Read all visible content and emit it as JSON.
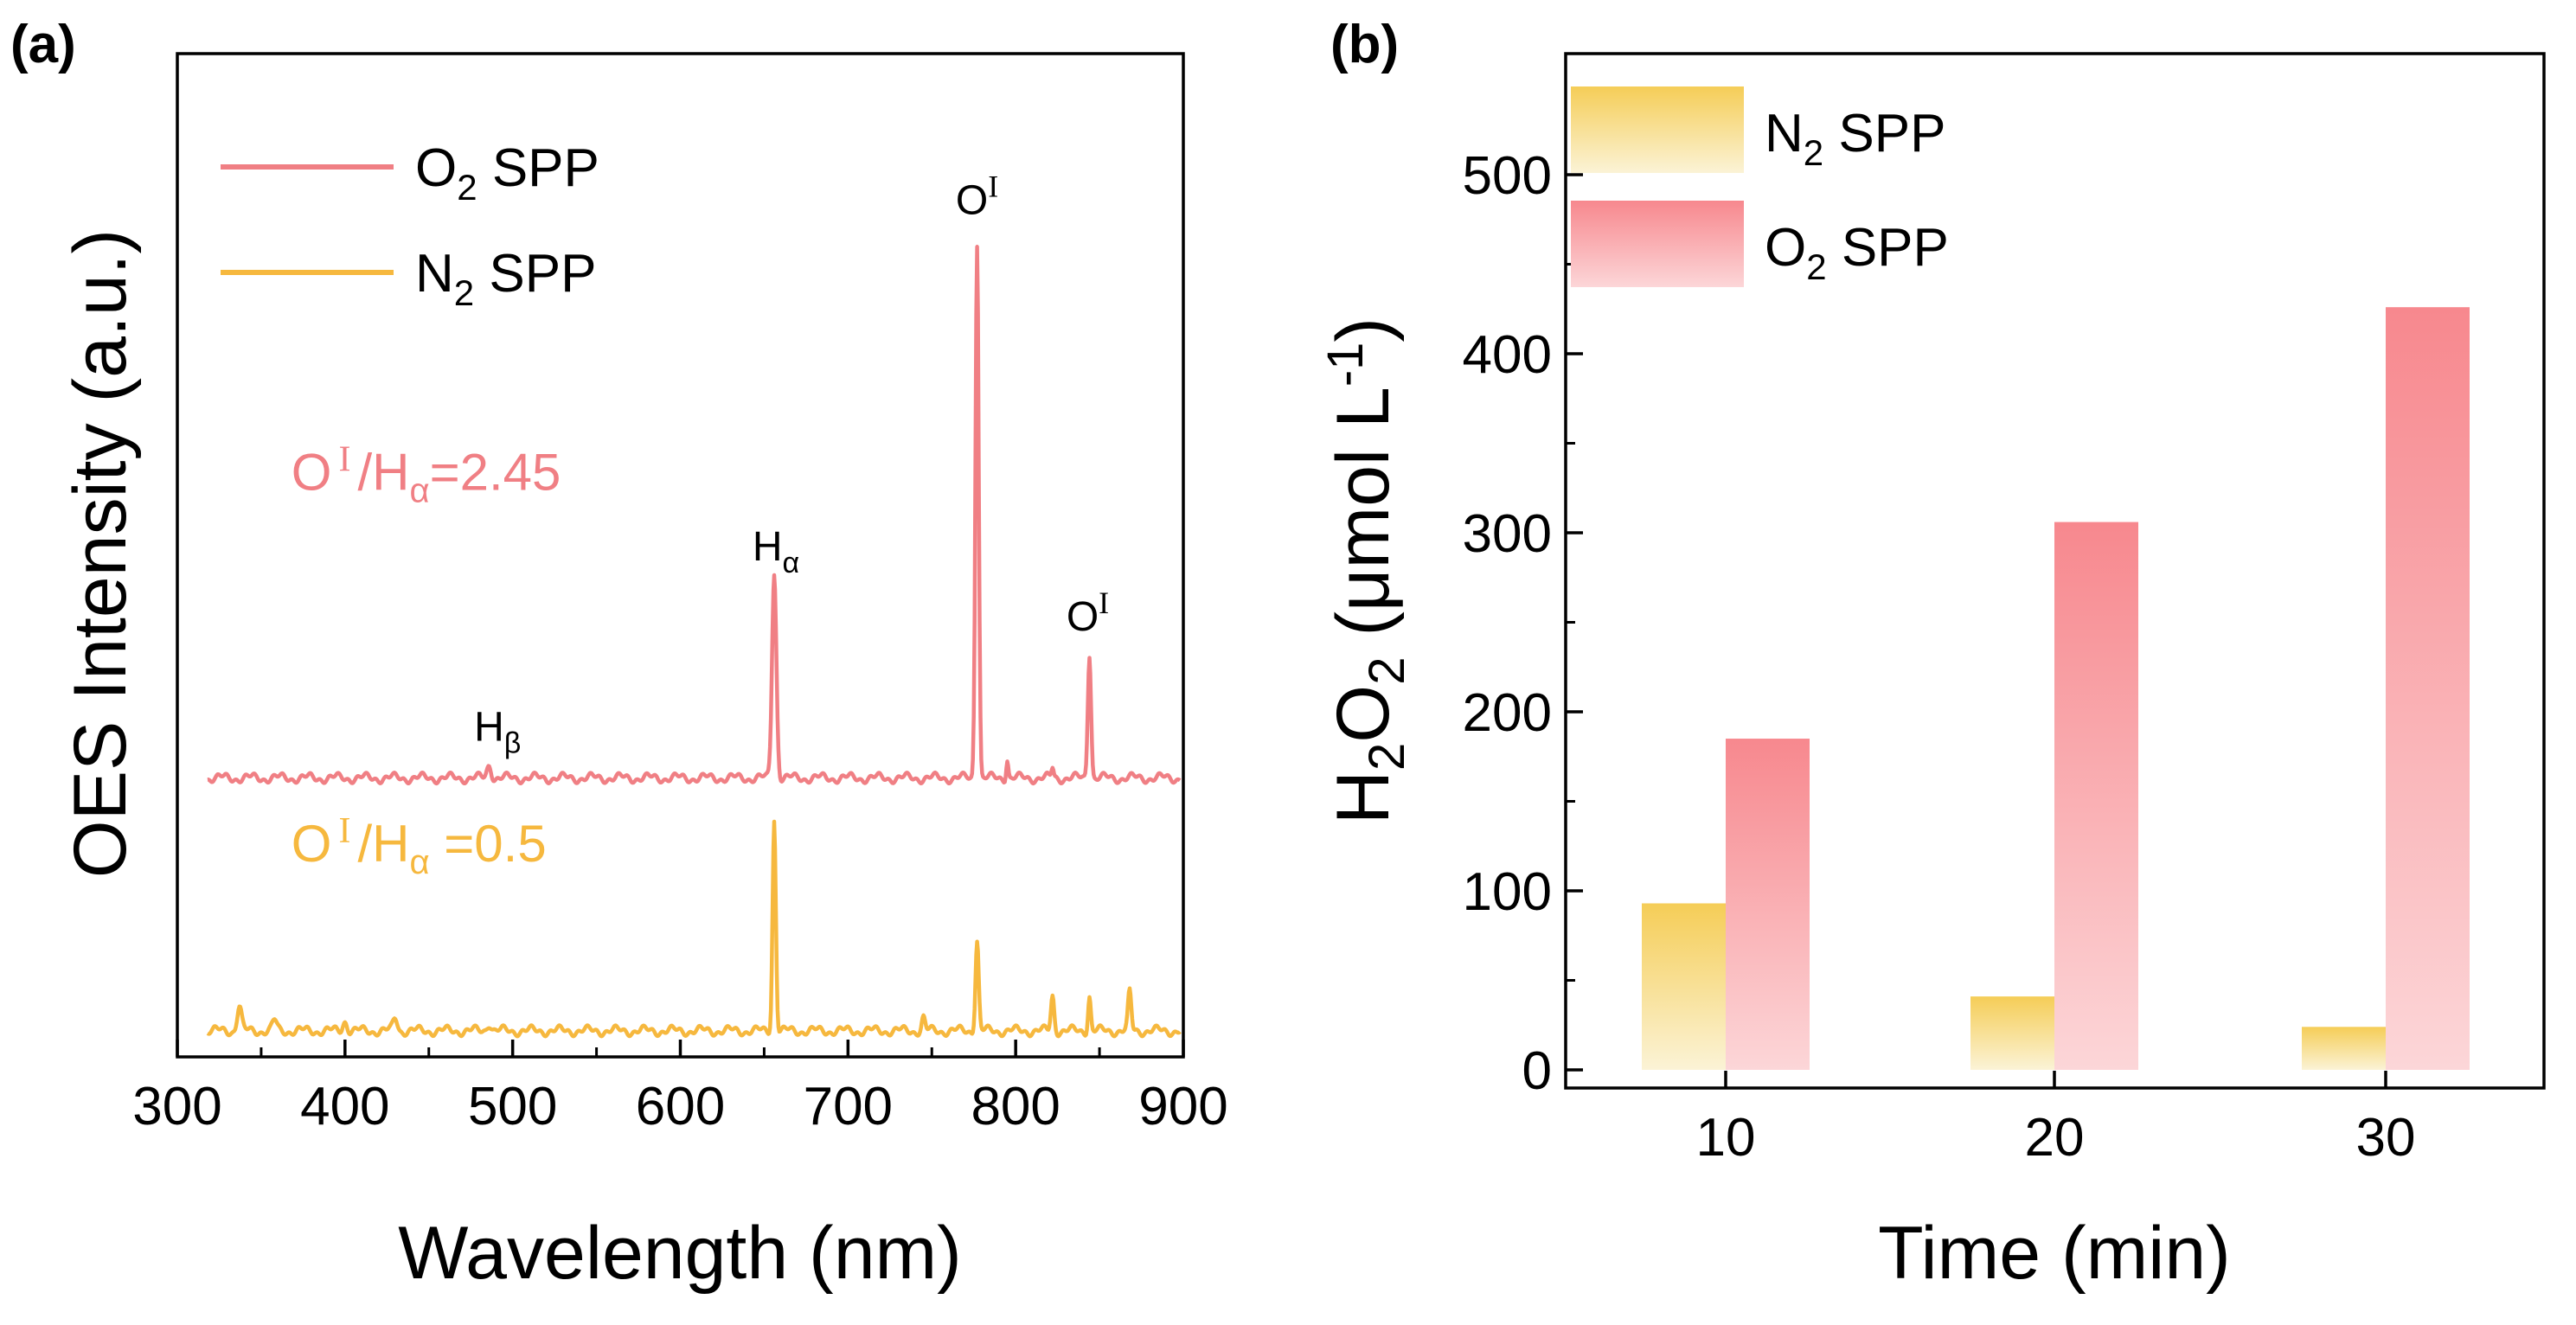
{
  "chart_data": [
    {
      "panel": "(a)",
      "type": "line",
      "xlabel": "Wavelength (nm)",
      "ylabel": "OES Intensity (a.u.)",
      "xlim": [
        300,
        900
      ],
      "xticks": [
        300,
        400,
        500,
        600,
        700,
        800,
        900
      ],
      "ylim": [
        0,
        100
      ],
      "colors": {
        "o2": "#f07f84",
        "n2": "#f6b83e"
      },
      "legend": [
        {
          "key": "o2",
          "main": "O",
          "sub": "2",
          "tail": " SPP"
        },
        {
          "key": "n2",
          "main": "N",
          "sub": "2",
          "tail": " SPP"
        }
      ],
      "series": [
        {
          "name": "O2 SPP",
          "baseline": 27.8,
          "noise": [
            [
              320,
              0.2
            ],
            [
              420,
              0.3
            ],
            [
              500,
              0.2
            ],
            [
              600,
              0.3
            ],
            [
              700,
              0.2
            ],
            [
              800,
              0.3
            ],
            [
              900,
              0.2
            ]
          ],
          "peaks": [
            [
              486,
              1.3,
              4
            ],
            [
              656,
              20.5,
              4
            ],
            [
              777,
              53.5,
              3
            ],
            [
              795,
              2.0,
              2
            ],
            [
              822,
              1.0,
              2
            ],
            [
              844,
              12.5,
              3
            ]
          ]
        },
        {
          "name": "N2 SPP",
          "baseline": 2.6,
          "noise": [
            [
              320,
              0.4
            ],
            [
              360,
              0.8
            ],
            [
              420,
              0.6
            ],
            [
              480,
              0.7
            ],
            [
              540,
              0.4
            ],
            [
              600,
              0.3
            ],
            [
              700,
              0.4
            ],
            [
              800,
              0.6
            ],
            [
              900,
              0.4
            ]
          ],
          "peaks": [
            [
              337,
              2.5,
              4
            ],
            [
              358,
              1.0,
              4
            ],
            [
              400,
              1.0,
              4
            ],
            [
              430,
              1.3,
              4
            ],
            [
              486,
              0.8,
              4
            ],
            [
              656,
              21.0,
              3
            ],
            [
              745,
              1.3,
              3
            ],
            [
              777,
              9.0,
              3
            ],
            [
              822,
              3.5,
              3
            ],
            [
              844,
              3.5,
              2.5
            ],
            [
              868,
              3.8,
              3
            ]
          ]
        }
      ],
      "peak_labels": [
        {
          "main": "H",
          "sub": "β",
          "sup": "",
          "x": 491,
          "y": 31.5
        },
        {
          "main": "H",
          "sub": "α",
          "sup": "",
          "x": 657,
          "y": 49.5
        },
        {
          "main": "O",
          "sub": "",
          "sup": "I",
          "x": 777,
          "y": 84.0
        },
        {
          "main": "O",
          "sub": "",
          "sup": "I",
          "x": 843,
          "y": 42.5
        }
      ],
      "ratio_annotations": [
        {
          "key": "o2",
          "main": "O",
          "sup": "I",
          "mid": "/H",
          "sub": "α",
          "value": "=2.45",
          "x": 368,
          "y": 56.5
        },
        {
          "key": "n2",
          "main": "O",
          "sup": "I",
          "mid": "/H",
          "sub": "α",
          "value": " =0.5",
          "x": 368,
          "y": 19.5
        }
      ]
    },
    {
      "panel": "(b)",
      "type": "bar",
      "xlabel": "Time (min)",
      "ylabel_main": "H",
      "ylabel_sub1": "2",
      "ylabel_mid": "O",
      "ylabel_sub2": "2",
      "ylabel_unit": " (μmol L",
      "ylabel_sup": "-1",
      "ylabel_close": ")",
      "categories": [
        "10",
        "20",
        "30"
      ],
      "ylim": [
        0,
        550
      ],
      "yticks": [
        0,
        100,
        200,
        300,
        400,
        500
      ],
      "legend": [
        {
          "key": "n2",
          "main": "N",
          "sub": "2",
          "tail": " SPP"
        },
        {
          "key": "o2",
          "main": "O",
          "sub": "2",
          "tail": " SPP"
        }
      ],
      "series": [
        {
          "name": "N2 SPP",
          "key": "n2",
          "values": [
            93,
            41,
            24
          ],
          "color_top": "#f5cd57",
          "color_bottom": "#fbf3d6"
        },
        {
          "name": "O2 SPP",
          "key": "o2",
          "values": [
            185,
            306,
            426
          ],
          "color_top": "#f7888e",
          "color_bottom": "#fcd6d8"
        }
      ]
    }
  ]
}
